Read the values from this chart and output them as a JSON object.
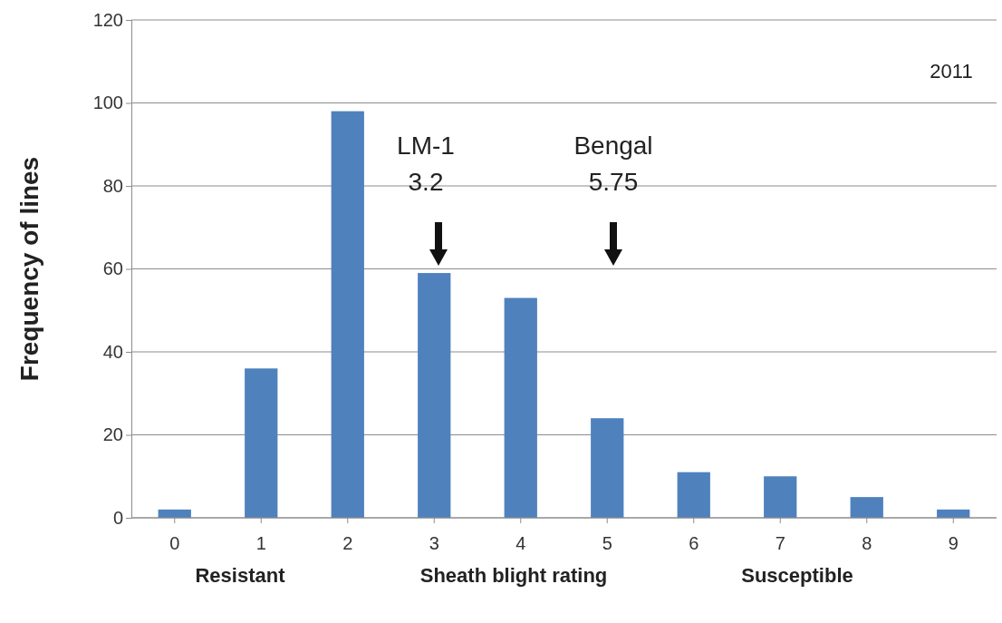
{
  "chart_data": {
    "type": "bar",
    "xlabel": "Sheath blight rating",
    "ylabel": "Frequency of lines",
    "categories": [
      "0",
      "1",
      "2",
      "3",
      "4",
      "5",
      "6",
      "7",
      "8",
      "9"
    ],
    "values": [
      2,
      36,
      98,
      59,
      53,
      24,
      11,
      10,
      5,
      2
    ],
    "color": "#4f81bd",
    "ylim": [
      0,
      120
    ],
    "yticks": [
      0,
      20,
      40,
      60,
      80,
      100,
      120
    ],
    "grid": "y",
    "annotations": [
      "2011",
      "LM-1",
      "3.2",
      "Bengal",
      "5.75",
      "Resistant",
      "Susceptible"
    ]
  }
}
